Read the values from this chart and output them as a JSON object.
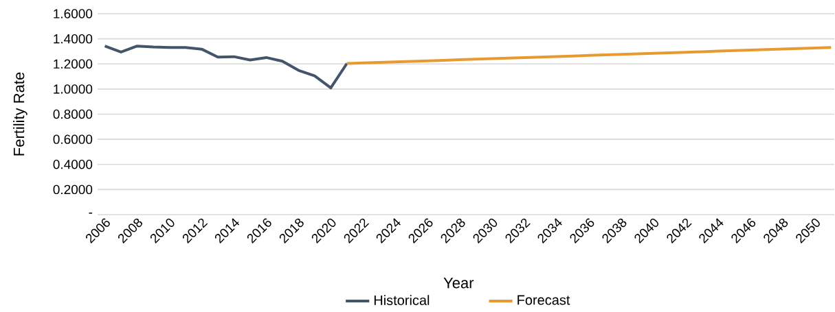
{
  "chart_data": {
    "type": "line",
    "xlabel": "Year",
    "ylabel": "Fertility Rate",
    "categories": [
      "2006",
      null,
      "2008",
      null,
      "2010",
      null,
      "2012",
      null,
      "2014",
      null,
      "2016",
      null,
      "2018",
      null,
      "2020",
      null,
      "2022",
      null,
      "2024",
      null,
      "2026",
      null,
      "2028",
      null,
      "2030",
      null,
      "2032",
      null,
      "2034",
      null,
      "2036",
      null,
      "2038",
      null,
      "2040",
      null,
      "2042",
      null,
      "2044",
      null,
      "2046",
      null,
      "2048",
      null,
      "2050",
      null
    ],
    "series": [
      {
        "name": "Historical",
        "color": "#44546a",
        "values": [
          1.342,
          1.295,
          1.342,
          1.335,
          1.331,
          1.331,
          1.318,
          1.255,
          1.258,
          1.231,
          1.251,
          1.222,
          1.149,
          1.105,
          1.009,
          1.204,
          null,
          null,
          null,
          null,
          null,
          null,
          null,
          null,
          null,
          null,
          null,
          null,
          null,
          null,
          null,
          null,
          null,
          null,
          null,
          null,
          null,
          null,
          null,
          null,
          null,
          null,
          null,
          null,
          null,
          null
        ]
      },
      {
        "name": "Forecast",
        "color": "#e89a2f",
        "values": [
          null,
          null,
          null,
          null,
          null,
          null,
          null,
          null,
          null,
          null,
          null,
          null,
          null,
          null,
          null,
          1.204,
          1.208,
          1.212,
          1.217,
          1.221,
          1.225,
          1.229,
          1.234,
          1.238,
          1.242,
          1.246,
          1.251,
          1.255,
          1.259,
          1.263,
          1.268,
          1.272,
          1.276,
          1.28,
          1.285,
          1.289,
          1.293,
          1.297,
          1.302,
          1.306,
          1.31,
          1.314,
          1.319,
          1.323,
          1.327,
          1.331
        ]
      }
    ],
    "ylim": [
      0,
      1.6
    ],
    "yticks": [
      {
        "value": 0,
        "label": "-"
      },
      {
        "value": 0.2,
        "label": "0.2000"
      },
      {
        "value": 0.4,
        "label": "0.4000"
      },
      {
        "value": 0.6,
        "label": "0.6000"
      },
      {
        "value": 0.8,
        "label": "0.8000"
      },
      {
        "value": 1.0,
        "label": "1.0000"
      },
      {
        "value": 1.2,
        "label": "1.2000"
      },
      {
        "value": 1.4,
        "label": "1.4000"
      },
      {
        "value": 1.6,
        "label": "1.6000"
      }
    ],
    "grid": "y",
    "legend": "bottom",
    "marker": "none",
    "line_style": "solid"
  }
}
